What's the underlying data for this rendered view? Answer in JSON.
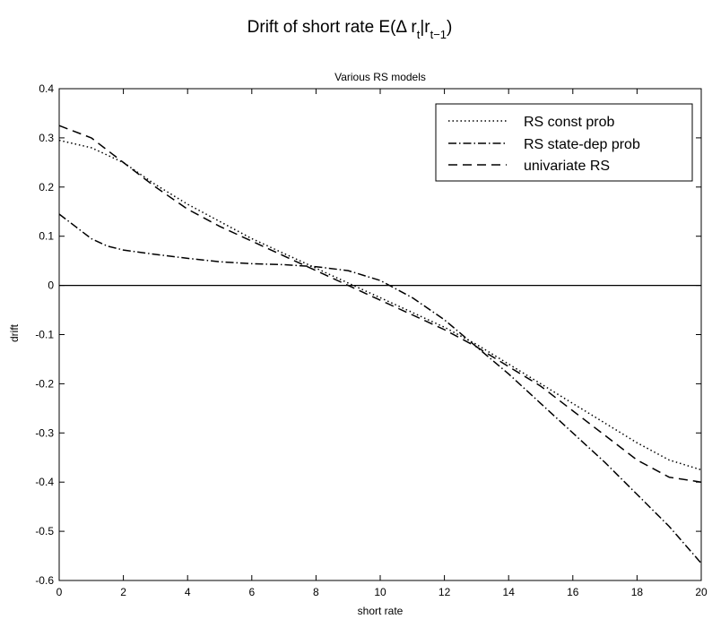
{
  "figure_title": {
    "main": "Drift of short rate E(Δ r",
    "sub_t": "t",
    "bar_r": "|r",
    "sub_t1": "t−1",
    "close": ")"
  },
  "chart_data": {
    "type": "line",
    "title": "Various RS models",
    "xlabel": "short rate",
    "ylabel": "drift",
    "xlim": [
      0,
      20
    ],
    "ylim": [
      -0.6,
      0.4
    ],
    "xticks": [
      0,
      2,
      4,
      6,
      8,
      10,
      12,
      14,
      16,
      18,
      20
    ],
    "yticks": [
      -0.6,
      -0.5,
      -0.4,
      -0.3,
      -0.2,
      -0.1,
      0,
      0.1,
      0.2,
      0.3,
      0.4
    ],
    "xtick_labels": [
      "0",
      "2",
      "4",
      "6",
      "8",
      "10",
      "12",
      "14",
      "16",
      "18",
      "20"
    ],
    "ytick_labels": [
      "-0.6",
      "-0.5",
      "-0.4",
      "-0.3",
      "-0.2",
      "-0.1",
      "0",
      "0.1",
      "0.2",
      "0.3",
      "0.4"
    ],
    "legend_position": "top-right",
    "grid": false,
    "reference_line": {
      "y": 0,
      "style": "solid"
    },
    "series": [
      {
        "name": "RS const prob",
        "style": "dotted",
        "x": [
          0,
          1,
          2,
          3,
          4,
          5,
          6,
          7,
          8,
          9,
          10,
          11,
          12,
          13,
          14,
          15,
          16,
          17,
          18,
          19,
          20
        ],
        "y": [
          0.295,
          0.28,
          0.25,
          0.205,
          0.165,
          0.13,
          0.095,
          0.065,
          0.035,
          0.005,
          -0.025,
          -0.055,
          -0.085,
          -0.12,
          -0.16,
          -0.2,
          -0.24,
          -0.28,
          -0.32,
          -0.355,
          -0.375
        ]
      },
      {
        "name": "RS state-dep prob",
        "style": "dashdot",
        "x": [
          0,
          0.5,
          1,
          1.5,
          2,
          3,
          4,
          5,
          6,
          7,
          8,
          9,
          10,
          11,
          12,
          13,
          14,
          15,
          16,
          17,
          18,
          19,
          20
        ],
        "y": [
          0.145,
          0.12,
          0.095,
          0.08,
          0.072,
          0.063,
          0.055,
          0.048,
          0.044,
          0.042,
          0.038,
          0.03,
          0.01,
          -0.025,
          -0.07,
          -0.125,
          -0.18,
          -0.24,
          -0.3,
          -0.36,
          -0.425,
          -0.49,
          -0.565
        ]
      },
      {
        "name": "univariate RS",
        "style": "dashed",
        "x": [
          0,
          1,
          2,
          3,
          4,
          5,
          6,
          7,
          8,
          9,
          10,
          11,
          12,
          13,
          14,
          15,
          16,
          17,
          18,
          19,
          20
        ],
        "y": [
          0.325,
          0.3,
          0.25,
          0.2,
          0.155,
          0.12,
          0.09,
          0.06,
          0.03,
          0.0,
          -0.03,
          -0.06,
          -0.09,
          -0.125,
          -0.165,
          -0.205,
          -0.255,
          -0.305,
          -0.355,
          -0.39,
          -0.4
        ]
      }
    ]
  }
}
